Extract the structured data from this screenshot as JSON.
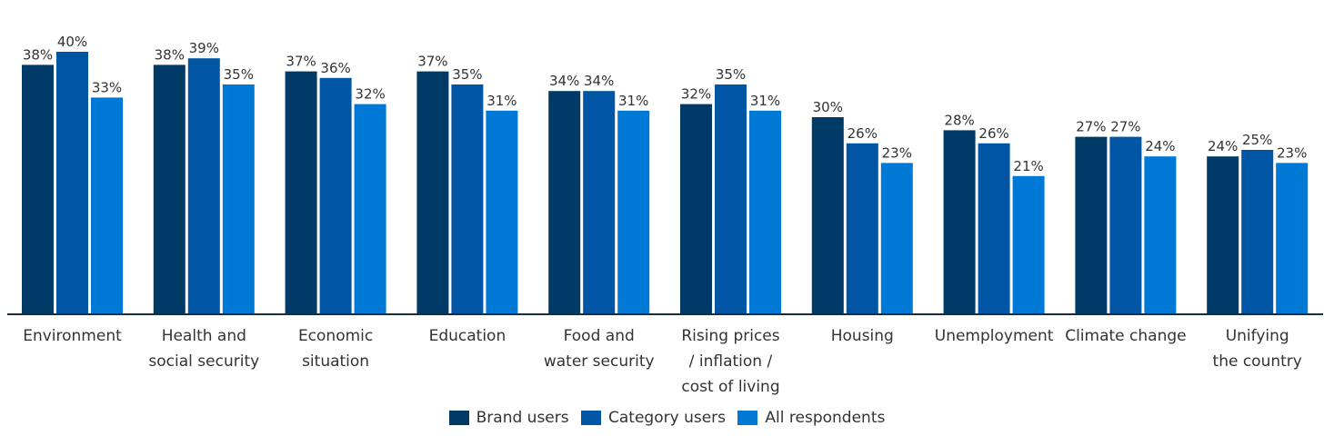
{
  "chart_data": {
    "type": "bar",
    "categories": [
      [
        "Environment"
      ],
      [
        "Health and",
        "social security"
      ],
      [
        "Economic",
        "situation"
      ],
      [
        "Education"
      ],
      [
        "Food and",
        "water security"
      ],
      [
        "Rising prices",
        "/ inflation /",
        "cost of living"
      ],
      [
        "Housing"
      ],
      [
        "Unemployment"
      ],
      [
        "Climate change"
      ],
      [
        "Unifying",
        "the country"
      ]
    ],
    "series": [
      {
        "name": "Brand users",
        "color": "#003a66",
        "values": [
          38,
          38,
          37,
          37,
          34,
          32,
          30,
          28,
          27,
          24
        ]
      },
      {
        "name": "Category users",
        "color": "#0055a5",
        "values": [
          40,
          39,
          36,
          35,
          34,
          35,
          26,
          26,
          27,
          25
        ]
      },
      {
        "name": "All respondents",
        "color": "#0079d6",
        "values": [
          33,
          35,
          32,
          31,
          31,
          31,
          23,
          21,
          24,
          23
        ]
      }
    ],
    "value_suffix": "%",
    "ylim": [
      0,
      40
    ],
    "grid": false,
    "legend_position": "bottom-center",
    "axis_color": "#1a2b3c"
  }
}
